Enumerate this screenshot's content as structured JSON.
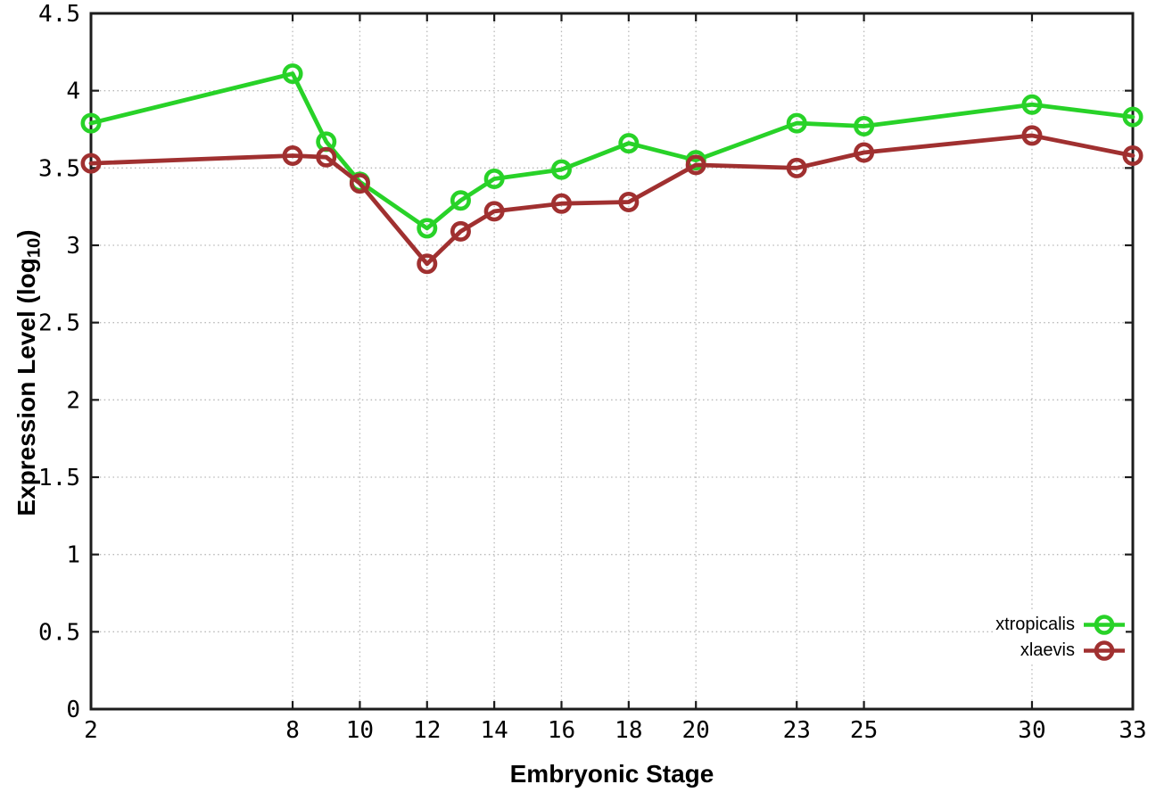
{
  "labels": {
    "xlabel": "Embryonic Stage",
    "ylabel_prefix": "Expression Level (log",
    "ylabel_sub": "10",
    "ylabel_suffix": ")"
  },
  "chart_data": {
    "type": "line",
    "title": "",
    "xlabel": "Embryonic Stage",
    "ylabel": "Expression Level (log10)",
    "x": [
      2,
      8,
      9,
      10,
      12,
      13,
      14,
      16,
      18,
      20,
      23,
      25,
      30,
      33
    ],
    "series": [
      {
        "name": "xtropicalis",
        "color": "#28d228",
        "values": [
          3.79,
          4.11,
          3.67,
          3.41,
          3.11,
          3.29,
          3.43,
          3.49,
          3.66,
          3.55,
          3.79,
          3.77,
          3.91,
          3.83
        ]
      },
      {
        "name": "xlaevis",
        "color": "#a03030",
        "values": [
          3.53,
          3.58,
          3.57,
          3.4,
          2.88,
          3.09,
          3.22,
          3.27,
          3.28,
          3.52,
          3.5,
          3.6,
          3.71,
          3.58
        ]
      }
    ],
    "x_ticks": [
      2,
      8,
      10,
      12,
      14,
      16,
      18,
      20,
      23,
      25,
      30,
      33
    ],
    "y_ticks": [
      0,
      0.5,
      1,
      1.5,
      2,
      2.5,
      3,
      3.5,
      4,
      4.5
    ],
    "y_tick_labels": [
      "0",
      "0.5",
      "1",
      "1.5",
      "2",
      "2.5",
      "3",
      "3.5",
      "4",
      "4.5"
    ],
    "xlim": [
      2,
      33
    ],
    "ylim": [
      0,
      4.5
    ],
    "grid": true,
    "grid_style": "dotted",
    "grid_color": "#b8b8b8",
    "border_color": "#1c1c1c",
    "marker": "open-circle",
    "legend_position": "inside-bottom-right",
    "legend_entries": [
      "xtropicalis",
      "xlaevis"
    ]
  }
}
